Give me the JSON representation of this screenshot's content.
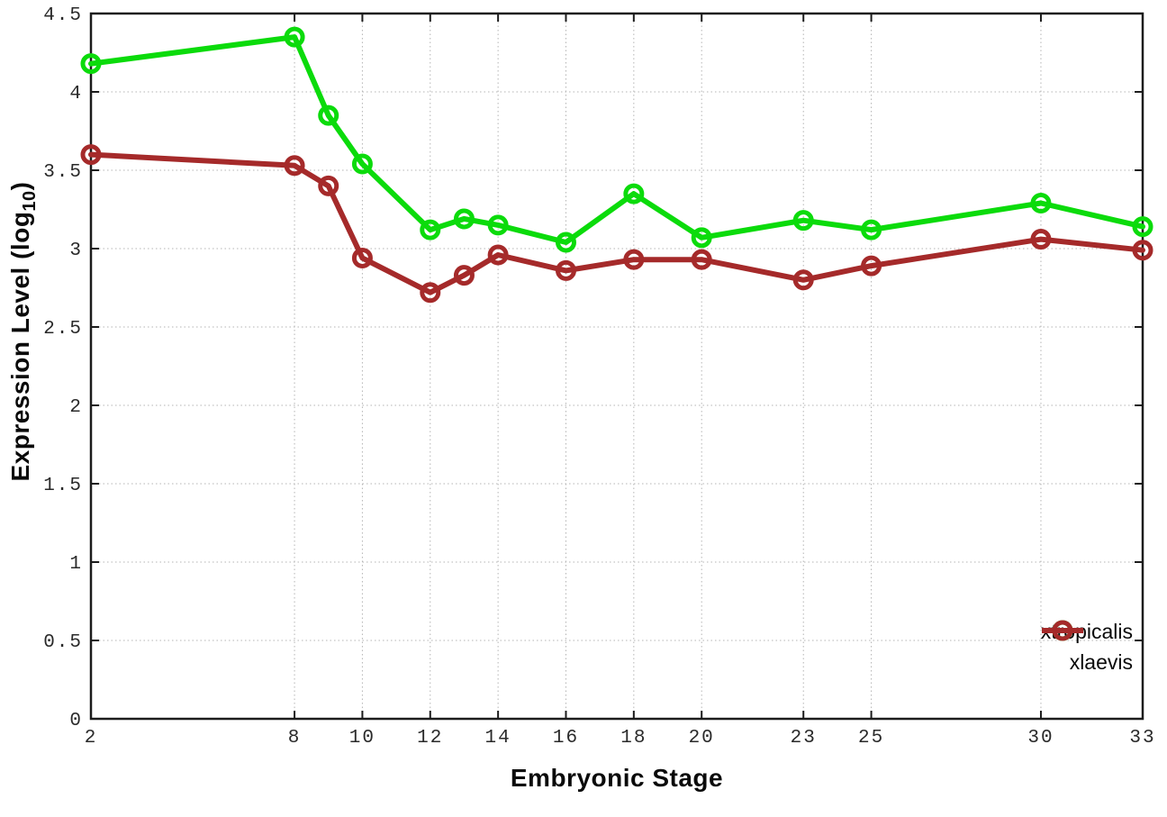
{
  "chart_data": {
    "type": "line",
    "title": "",
    "xlabel": "Embryonic Stage",
    "ylabel": "Expression Level (log10)",
    "ylabel_parts": {
      "prefix": "Expression Level (log",
      "sub": "10",
      "suffix": ")"
    },
    "xlim": [
      2,
      33
    ],
    "ylim": [
      0,
      4.5
    ],
    "x_ticks": [
      2,
      8,
      10,
      12,
      14,
      16,
      18,
      20,
      23,
      25,
      30,
      33
    ],
    "y_ticks": [
      0,
      0.5,
      1,
      1.5,
      2,
      2.5,
      3,
      3.5,
      4,
      4.5
    ],
    "grid": true,
    "legend_position": "bottom-right",
    "marker": "open-circle",
    "x": [
      2,
      8,
      9,
      10,
      12,
      13,
      14,
      16,
      18,
      20,
      23,
      25,
      30,
      33
    ],
    "series": [
      {
        "name": "xtropicalis",
        "color": "#0bdb0b",
        "values": [
          4.18,
          4.35,
          3.85,
          3.54,
          3.12,
          3.19,
          3.15,
          3.04,
          3.35,
          3.07,
          3.18,
          3.12,
          3.29,
          3.14
        ]
      },
      {
        "name": "xlaevis",
        "color": "#a52a2a",
        "values": [
          3.6,
          3.53,
          3.4,
          2.94,
          2.72,
          2.83,
          2.96,
          2.86,
          2.93,
          2.93,
          2.8,
          2.89,
          3.06,
          2.99
        ]
      }
    ],
    "axis_color": "#1c1c1c",
    "grid_color": "#b4b4b4",
    "tick_label_color": "#2a2a2a"
  }
}
